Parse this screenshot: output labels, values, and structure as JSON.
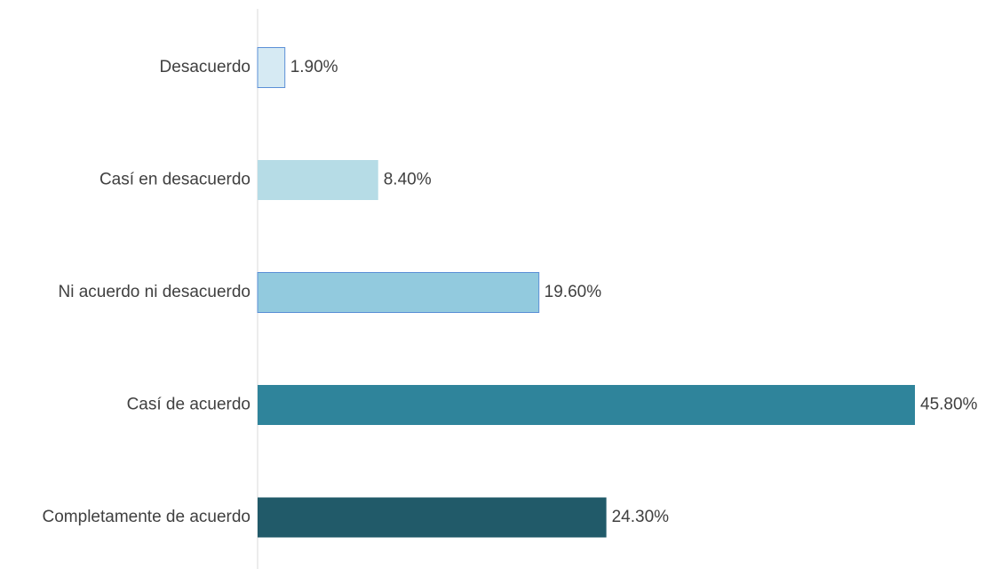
{
  "chart_data": {
    "type": "bar",
    "orientation": "horizontal",
    "categories": [
      "Desacuerdo",
      "Casí en desacuerdo",
      "Ni acuerdo ni desacuerdo",
      "Casí de acuerdo",
      "Completamente de acuerdo"
    ],
    "values": [
      1.9,
      8.4,
      19.6,
      45.8,
      24.3
    ],
    "value_labels": [
      "1.90%",
      "8.40%",
      "19.60%",
      "45.80%",
      "24.30%"
    ],
    "unit": "%",
    "colors": [
      "#d6eaf3",
      "#b6dce6",
      "#92cade",
      "#2f849b",
      "#215a69"
    ],
    "outline_colors": [
      "#5b8fd6",
      null,
      "#5b8fd6",
      null,
      null
    ],
    "axis_color": "#d9d9d9",
    "label_color": "#404040",
    "xlim": [
      0,
      45.8
    ],
    "grid": false,
    "legend": "none",
    "title": "",
    "xlabel": "",
    "ylabel": ""
  }
}
